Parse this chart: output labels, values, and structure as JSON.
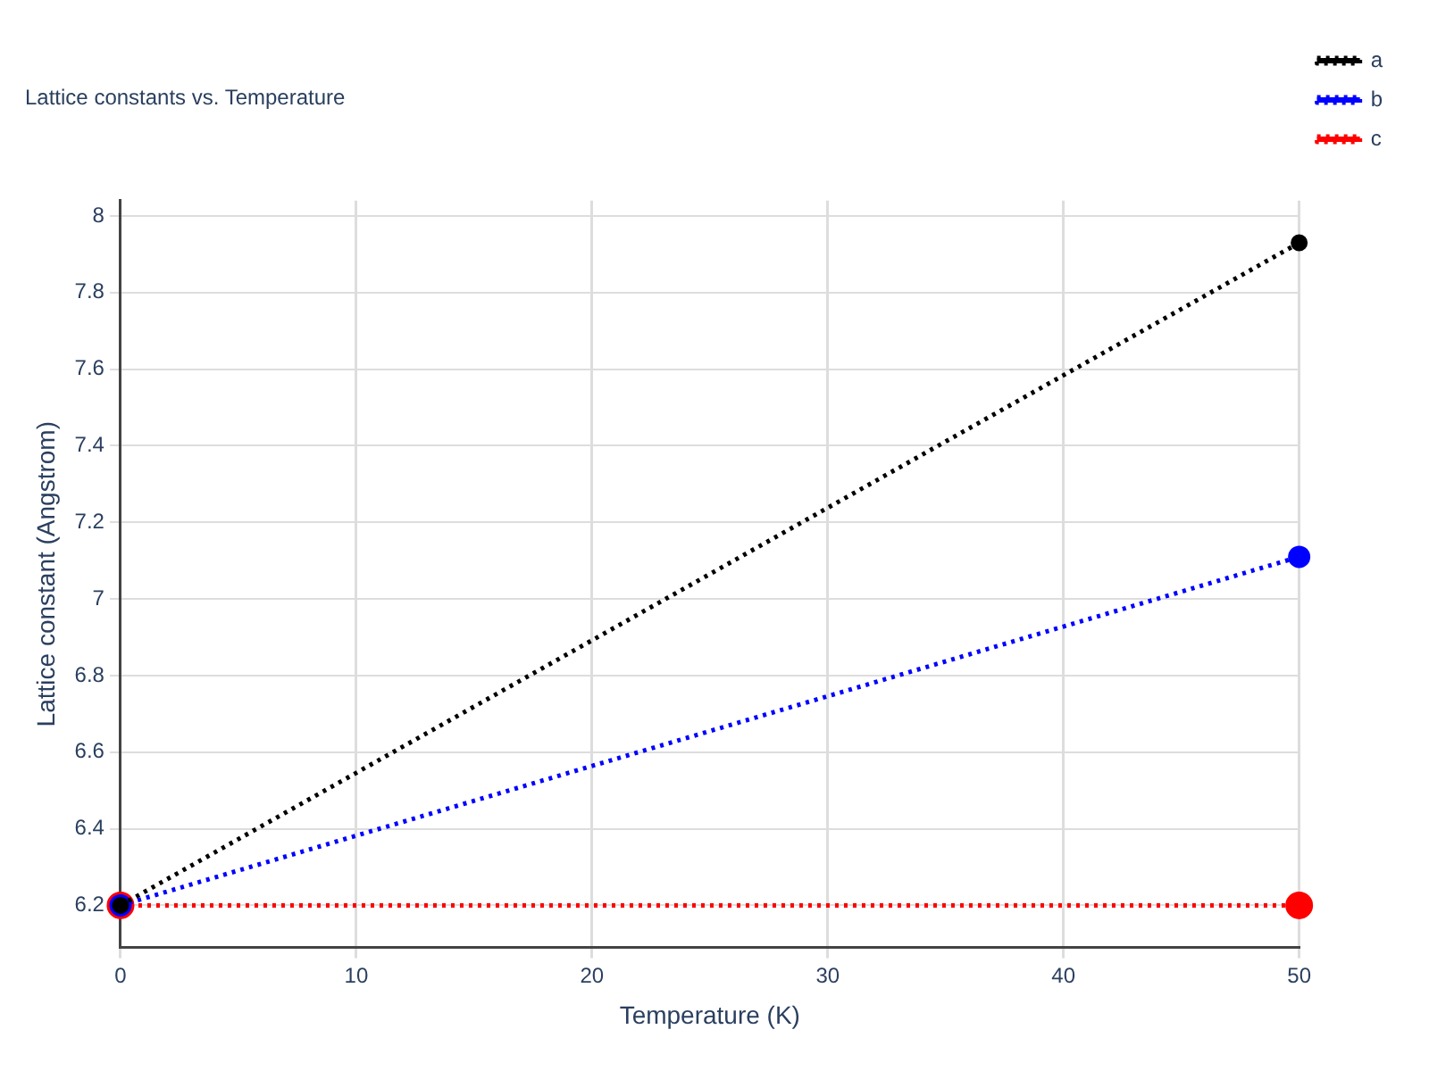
{
  "chart_data": {
    "type": "line",
    "title": "Lattice constants vs. Temperature",
    "xlabel": "Temperature (K)",
    "ylabel": "Lattice constant (Angstrom)",
    "x": [
      0,
      50
    ],
    "series": [
      {
        "name": "a",
        "color": "#000000",
        "values": [
          6.2,
          7.93
        ]
      },
      {
        "name": "b",
        "color": "#0000ff",
        "values": [
          6.2,
          7.11
        ]
      },
      {
        "name": "c",
        "color": "#ff0000",
        "values": [
          6.2,
          6.2
        ]
      }
    ],
    "xlim": [
      0,
      50
    ],
    "xticks": [
      0,
      10,
      20,
      30,
      40,
      50
    ],
    "ylim": [
      6.09,
      8.04
    ],
    "yticks": [
      6.2,
      6.4,
      6.6,
      6.8,
      7,
      7.2,
      7.4,
      7.6,
      7.8,
      8
    ],
    "grid": true,
    "legend": "top right",
    "marker": "circle",
    "line_style": "dotted"
  }
}
